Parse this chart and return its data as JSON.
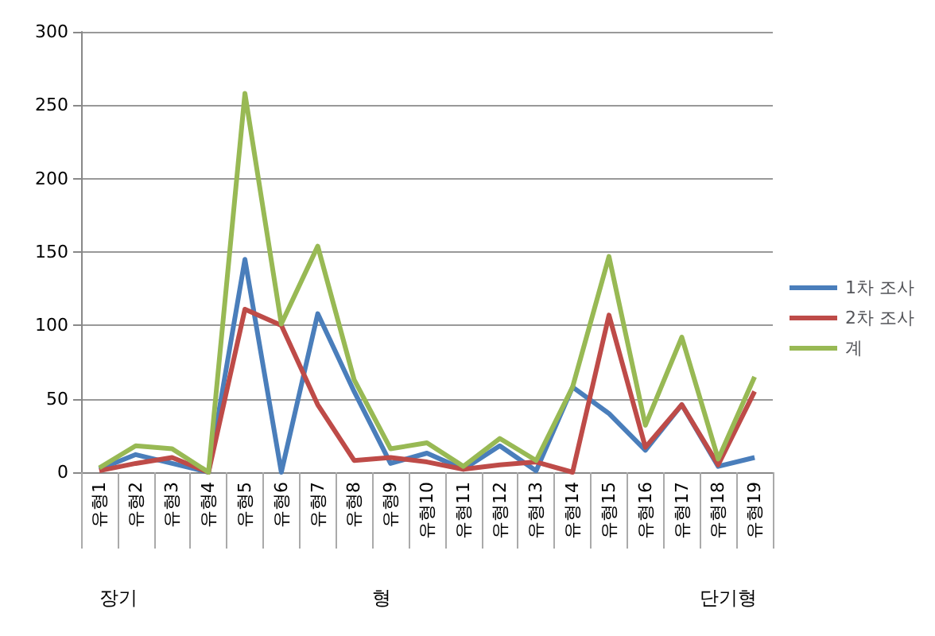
{
  "chart_data": {
    "type": "line",
    "categories": [
      "유형1",
      "유형2",
      "유형3",
      "유형4",
      "유형5",
      "유형6",
      "유형7",
      "유형8",
      "유형9",
      "유형10",
      "유형11",
      "유형12",
      "유형13",
      "유형14",
      "유형15",
      "유형16",
      "유형17",
      "유형18",
      "유형19"
    ],
    "series": [
      {
        "name": "1차 조사",
        "color": "#4a7ebb",
        "values": [
          2,
          12,
          6,
          0,
          145,
          0,
          108,
          55,
          6,
          13,
          2,
          18,
          1,
          58,
          40,
          15,
          46,
          4,
          10
        ]
      },
      {
        "name": "2차 조사",
        "color": "#be4b48",
        "values": [
          1,
          6,
          10,
          0,
          111,
          100,
          46,
          8,
          10,
          7,
          2,
          5,
          7,
          0,
          107,
          17,
          46,
          5,
          55
        ]
      },
      {
        "name": "계",
        "color": "#98b954",
        "values": [
          3,
          18,
          16,
          0,
          258,
          101,
          154,
          63,
          16,
          20,
          4,
          23,
          8,
          58,
          147,
          32,
          92,
          9,
          65
        ]
      }
    ],
    "ylim": [
      0,
      300
    ],
    "yticks": [
      0,
      50,
      100,
      150,
      200,
      250,
      300
    ],
    "grid": "y",
    "legend": "right",
    "marker": "none",
    "line_style": "solid",
    "annotations": [
      "장기",
      "형",
      "단기형"
    ]
  }
}
